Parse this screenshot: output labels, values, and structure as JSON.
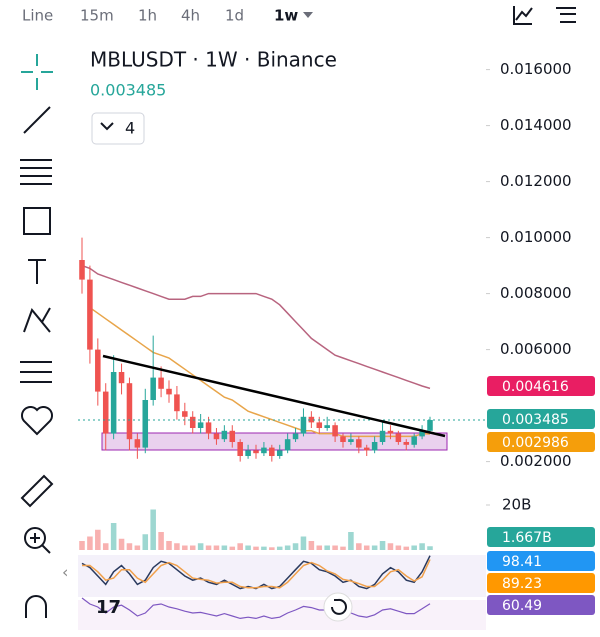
{
  "toolbar": {
    "intervals": [
      "Line",
      "15m",
      "1h",
      "4h",
      "1d",
      "1w"
    ]
  },
  "chart_data": {
    "type": "candlestick",
    "title": "MBLUSDT · 1W · Binance",
    "indicator_count": 4,
    "ylim": [
      0.0017,
      0.0167
    ],
    "yticks": [
      {
        "value": 0.002,
        "label": "0.002000"
      },
      {
        "value": 0.006,
        "label": "0.006000"
      },
      {
        "value": 0.008,
        "label": "0.008000"
      },
      {
        "value": 0.01,
        "label": "0.010000"
      },
      {
        "value": 0.012,
        "label": "0.012000"
      },
      {
        "value": 0.014,
        "label": "0.014000"
      },
      {
        "value": 0.016,
        "label": "0.016000"
      }
    ],
    "up_color": "#26a69a",
    "down_color": "#ef5350",
    "open": [
      0.0092,
      0.0085,
      0.006,
      0.0045,
      0.003,
      0.0052,
      0.0048,
      0.0028,
      0.0025,
      0.0042,
      0.005,
      0.0046,
      0.0044,
      0.0038,
      0.0036,
      0.0032,
      0.0034,
      0.003,
      0.0028,
      0.0031,
      0.0027,
      0.0022,
      0.0024,
      0.0023,
      0.0025,
      0.0022,
      0.0024,
      0.0028,
      0.003,
      0.0036,
      0.0034,
      0.0032,
      0.0033,
      0.0029,
      0.0027,
      0.0028,
      0.0025,
      0.0024,
      0.0027,
      0.0031,
      0.003,
      0.0027,
      0.0026,
      0.0029,
      0.0031
    ],
    "high": [
      0.01,
      0.009,
      0.0064,
      0.0048,
      0.0058,
      0.0055,
      0.005,
      0.003,
      0.0046,
      0.0065,
      0.0054,
      0.0049,
      0.0047,
      0.0041,
      0.0038,
      0.0037,
      0.0036,
      0.0032,
      0.0033,
      0.0033,
      0.0028,
      0.0026,
      0.0026,
      0.0027,
      0.0026,
      0.0026,
      0.003,
      0.0032,
      0.0039,
      0.0038,
      0.0036,
      0.0036,
      0.0034,
      0.003,
      0.003,
      0.0029,
      0.0026,
      0.0029,
      0.0034,
      0.0033,
      0.0031,
      0.0028,
      0.003,
      0.0033,
      0.0036
    ],
    "low": [
      0.008,
      0.0055,
      0.004,
      0.0024,
      0.0028,
      0.0044,
      0.0024,
      0.0021,
      0.0023,
      0.004,
      0.0043,
      0.0041,
      0.0035,
      0.0033,
      0.003,
      0.003,
      0.0028,
      0.0026,
      0.0027,
      0.0025,
      0.002,
      0.0021,
      0.0021,
      0.0022,
      0.002,
      0.0021,
      0.0023,
      0.0027,
      0.0029,
      0.0032,
      0.003,
      0.0031,
      0.0027,
      0.0025,
      0.0026,
      0.0023,
      0.0022,
      0.0023,
      0.0026,
      0.0028,
      0.0026,
      0.0024,
      0.0025,
      0.0028,
      0.003
    ],
    "close": [
      0.0085,
      0.006,
      0.0045,
      0.003,
      0.0052,
      0.0048,
      0.0028,
      0.0025,
      0.0042,
      0.005,
      0.0046,
      0.0044,
      0.0038,
      0.0036,
      0.0032,
      0.0034,
      0.003,
      0.0028,
      0.0031,
      0.0027,
      0.0022,
      0.0024,
      0.0023,
      0.0025,
      0.0022,
      0.0024,
      0.0028,
      0.003,
      0.0036,
      0.0034,
      0.0032,
      0.0033,
      0.0029,
      0.0027,
      0.0028,
      0.0025,
      0.0024,
      0.0027,
      0.0031,
      0.003,
      0.0027,
      0.0026,
      0.0029,
      0.0031,
      0.003485
    ],
    "moving_averages": [
      {
        "color": "#e91e63",
        "line_color": "#b8647f",
        "values": [
          0.009,
          0.0089,
          0.0087,
          0.0086,
          0.0085,
          0.0084,
          0.0083,
          0.0082,
          0.0081,
          0.008,
          0.0079,
          0.0078,
          0.0078,
          0.0078,
          0.0079,
          0.0079,
          0.008,
          0.008,
          0.008,
          0.008,
          0.008,
          0.008,
          0.008,
          0.0079,
          0.0078,
          0.0076,
          0.0073,
          0.007,
          0.0067,
          0.0064,
          0.0062,
          0.006,
          0.0058,
          0.0057,
          0.0056,
          0.0055,
          0.0054,
          0.0053,
          0.0052,
          0.0051,
          0.005,
          0.0049,
          0.0048,
          0.0047,
          0.004616
        ]
      },
      {
        "color": "#f59e0b",
        "line_color": "#e8a54a",
        "values": [
          null,
          0.0075,
          0.0073,
          0.0071,
          0.0069,
          0.0067,
          0.0065,
          0.0063,
          0.0061,
          0.0059,
          0.0058,
          0.0057,
          0.0055,
          0.0053,
          0.0051,
          0.0049,
          0.0047,
          0.0045,
          0.0043,
          0.0042,
          0.004,
          0.0038,
          0.0037,
          0.0036,
          0.0035,
          0.0034,
          0.0033,
          0.0032,
          0.0031,
          0.0031,
          0.003,
          0.003,
          0.003,
          0.0029,
          0.0029,
          0.0029,
          0.0029,
          0.0029,
          0.0029,
          0.0029,
          0.0029,
          0.0029,
          0.0029,
          0.003,
          0.002986
        ]
      }
    ],
    "volume": {
      "ylim": [
        0,
        20
      ],
      "yticks": [
        {
          "value": 20,
          "label": "20B"
        }
      ],
      "values": [
        4,
        6,
        9,
        3,
        12,
        5,
        3,
        2,
        7,
        18,
        8,
        4,
        3,
        2,
        2,
        3,
        2,
        2,
        2,
        1.5,
        3,
        2,
        1.5,
        1.5,
        1.2,
        1.5,
        2,
        3,
        6,
        4,
        2,
        2,
        2,
        1.5,
        8,
        3,
        2,
        2,
        4,
        3,
        2,
        1.5,
        2,
        3,
        1.667
      ],
      "value_labels": [
        null,
        null,
        null,
        null,
        null,
        null,
        null,
        null,
        null,
        null,
        null,
        null,
        null,
        null,
        null,
        null,
        null,
        null,
        null,
        null,
        null,
        null,
        null,
        null,
        null,
        null,
        null,
        null,
        null,
        null,
        null,
        null,
        null,
        null,
        null,
        null,
        null,
        null,
        null,
        null,
        null,
        null,
        null,
        null,
        "1.667B"
      ]
    },
    "stochastic": {
      "ylim": [
        0,
        100
      ],
      "series": [
        {
          "color": "#2196f3",
          "line_color": "#2a3a5e",
          "values": [
            80,
            70,
            50,
            30,
            60,
            75,
            55,
            30,
            40,
            70,
            85,
            80,
            65,
            50,
            40,
            45,
            35,
            30,
            40,
            30,
            20,
            25,
            20,
            30,
            20,
            25,
            45,
            65,
            85,
            80,
            65,
            60,
            50,
            35,
            40,
            25,
            20,
            30,
            55,
            70,
            60,
            40,
            35,
            60,
            98.41
          ]
        },
        {
          "color": "#ff9800",
          "line_color": "#f0a04b",
          "values": [
            75,
            75,
            60,
            40,
            45,
            65,
            65,
            45,
            35,
            55,
            75,
            82,
            75,
            60,
            45,
            42,
            40,
            33,
            35,
            35,
            25,
            22,
            22,
            25,
            25,
            22,
            35,
            55,
            75,
            82,
            75,
            62,
            55,
            42,
            38,
            32,
            25,
            25,
            40,
            60,
            65,
            50,
            38,
            48,
            89.23
          ]
        }
      ]
    },
    "rsi": {
      "ylim": [
        0,
        100
      ],
      "color": "#7e57c2",
      "values": [
        70,
        60,
        55,
        45,
        55,
        58,
        50,
        40,
        45,
        58,
        60,
        55,
        52,
        48,
        45,
        46,
        43,
        40,
        44,
        40,
        36,
        38,
        36,
        40,
        36,
        38,
        45,
        50,
        56,
        54,
        50,
        50,
        47,
        44,
        45,
        40,
        38,
        42,
        50,
        52,
        48,
        44,
        44,
        52,
        60.49
      ]
    }
  }
}
